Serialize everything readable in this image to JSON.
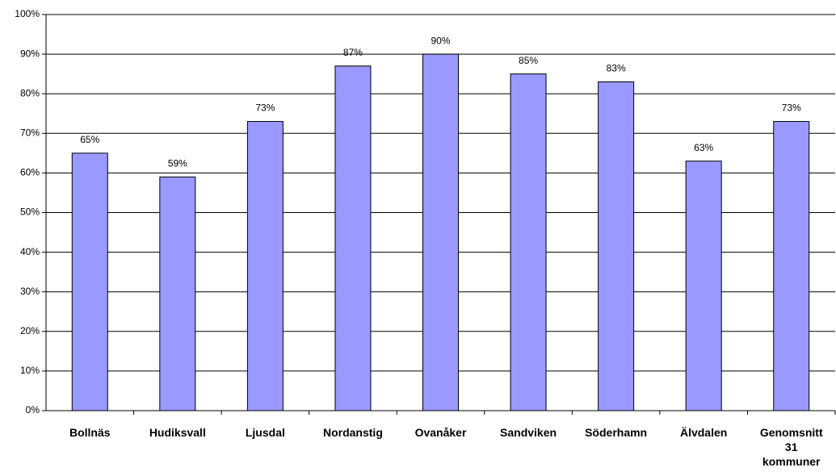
{
  "chart_data": {
    "type": "bar",
    "categories": [
      "Bollnäs",
      "Hudiksvall",
      "Ljusdal",
      "Nordanstig",
      "Ovanåker",
      "Sandviken",
      "Söderhamn",
      "Älvdalen",
      "Genomsnitt 31 kommuner"
    ],
    "values": [
      65,
      59,
      73,
      87,
      90,
      85,
      83,
      63,
      73
    ],
    "value_labels": [
      "65%",
      "59%",
      "73%",
      "87%",
      "90%",
      "85%",
      "83%",
      "63%",
      "73%"
    ],
    "color": "#9999ff",
    "ylim": [
      0,
      100
    ],
    "yticks": [
      {
        "value": 0,
        "label": "0%"
      },
      {
        "value": 10,
        "label": "10%"
      },
      {
        "value": 20,
        "label": "20%"
      },
      {
        "value": 30,
        "label": "30%"
      },
      {
        "value": 40,
        "label": "40%"
      },
      {
        "value": 50,
        "label": "50%"
      },
      {
        "value": 60,
        "label": "60%"
      },
      {
        "value": 70,
        "label": "70%"
      },
      {
        "value": 80,
        "label": "80%"
      },
      {
        "value": 90,
        "label": "90%"
      },
      {
        "value": 100,
        "label": "100%"
      }
    ],
    "grid": true
  }
}
